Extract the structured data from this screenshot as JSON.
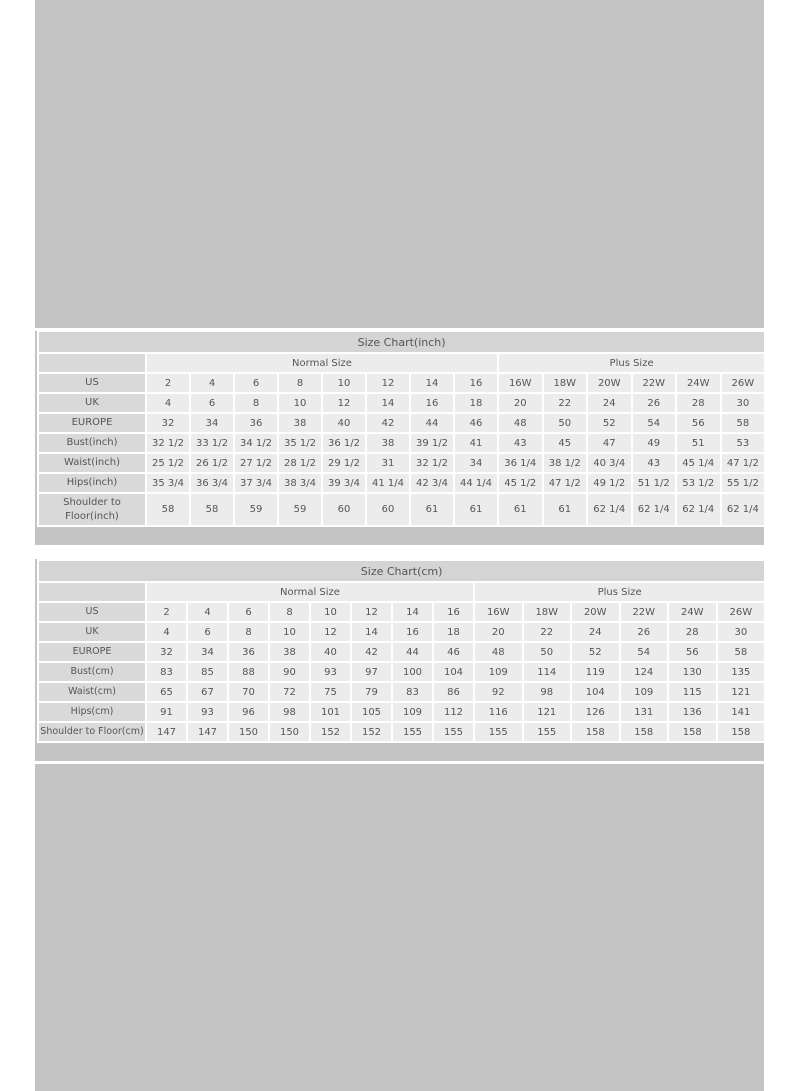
{
  "inch_chart": {
    "title": "Size Chart(inch)",
    "group_normal": "Normal Size",
    "group_plus": "Plus Size",
    "rows": [
      {
        "label": "US",
        "values": [
          "2",
          "4",
          "6",
          "8",
          "10",
          "12",
          "14",
          "16",
          "16W",
          "18W",
          "20W",
          "22W",
          "24W",
          "26W"
        ]
      },
      {
        "label": "UK",
        "values": [
          "4",
          "6",
          "8",
          "10",
          "12",
          "14",
          "16",
          "18",
          "20",
          "22",
          "24",
          "26",
          "28",
          "30"
        ]
      },
      {
        "label": "EUROPE",
        "values": [
          "32",
          "34",
          "36",
          "38",
          "40",
          "42",
          "44",
          "46",
          "48",
          "50",
          "52",
          "54",
          "56",
          "58"
        ]
      },
      {
        "label": "Bust(inch)",
        "values": [
          "32 1/2",
          "33 1/2",
          "34 1/2",
          "35 1/2",
          "36 1/2",
          "38",
          "39 1/2",
          "41",
          "43",
          "45",
          "47",
          "49",
          "51",
          "53"
        ]
      },
      {
        "label": "Waist(inch)",
        "values": [
          "25 1/2",
          "26 1/2",
          "27 1/2",
          "28 1/2",
          "29 1/2",
          "31",
          "32 1/2",
          "34",
          "36 1/4",
          "38 1/2",
          "40 3/4",
          "43",
          "45 1/4",
          "47 1/2"
        ]
      },
      {
        "label": "Hips(inch)",
        "values": [
          "35 3/4",
          "36 3/4",
          "37 3/4",
          "38 3/4",
          "39 3/4",
          "41 1/4",
          "42 3/4",
          "44 1/4",
          "45 1/2",
          "47 1/2",
          "49 1/2",
          "51 1/2",
          "53 1/2",
          "55 1/2"
        ]
      },
      {
        "label": "Shoulder to Floor(inch)",
        "values": [
          "58",
          "58",
          "59",
          "59",
          "60",
          "60",
          "61",
          "61",
          "61",
          "61",
          "62 1/4",
          "62 1/4",
          "62 1/4",
          "62 1/4"
        ]
      }
    ]
  },
  "cm_chart": {
    "title": "Size Chart(cm)",
    "group_normal": "Normal Size",
    "group_plus": "Plus Size",
    "rows": [
      {
        "label": "US",
        "values": [
          "2",
          "4",
          "6",
          "8",
          "10",
          "12",
          "14",
          "16",
          "16W",
          "18W",
          "20W",
          "22W",
          "24W",
          "26W"
        ]
      },
      {
        "label": "UK",
        "values": [
          "4",
          "6",
          "8",
          "10",
          "12",
          "14",
          "16",
          "18",
          "20",
          "22",
          "24",
          "26",
          "28",
          "30"
        ]
      },
      {
        "label": "EUROPE",
        "values": [
          "32",
          "34",
          "36",
          "38",
          "40",
          "42",
          "44",
          "46",
          "48",
          "50",
          "52",
          "54",
          "56",
          "58"
        ]
      },
      {
        "label": "Bust(cm)",
        "values": [
          "83",
          "85",
          "88",
          "90",
          "93",
          "97",
          "100",
          "104",
          "109",
          "114",
          "119",
          "124",
          "130",
          "135"
        ]
      },
      {
        "label": "Waist(cm)",
        "values": [
          "65",
          "67",
          "70",
          "72",
          "75",
          "79",
          "83",
          "86",
          "92",
          "98",
          "104",
          "109",
          "115",
          "121"
        ]
      },
      {
        "label": "Hips(cm)",
        "values": [
          "91",
          "93",
          "96",
          "98",
          "101",
          "105",
          "109",
          "112",
          "116",
          "121",
          "126",
          "131",
          "136",
          "141"
        ]
      },
      {
        "label": "Shoulder to Floor(cm)",
        "values": [
          "147",
          "147",
          "150",
          "150",
          "152",
          "152",
          "155",
          "155",
          "155",
          "155",
          "158",
          "158",
          "158",
          "158"
        ]
      }
    ]
  }
}
